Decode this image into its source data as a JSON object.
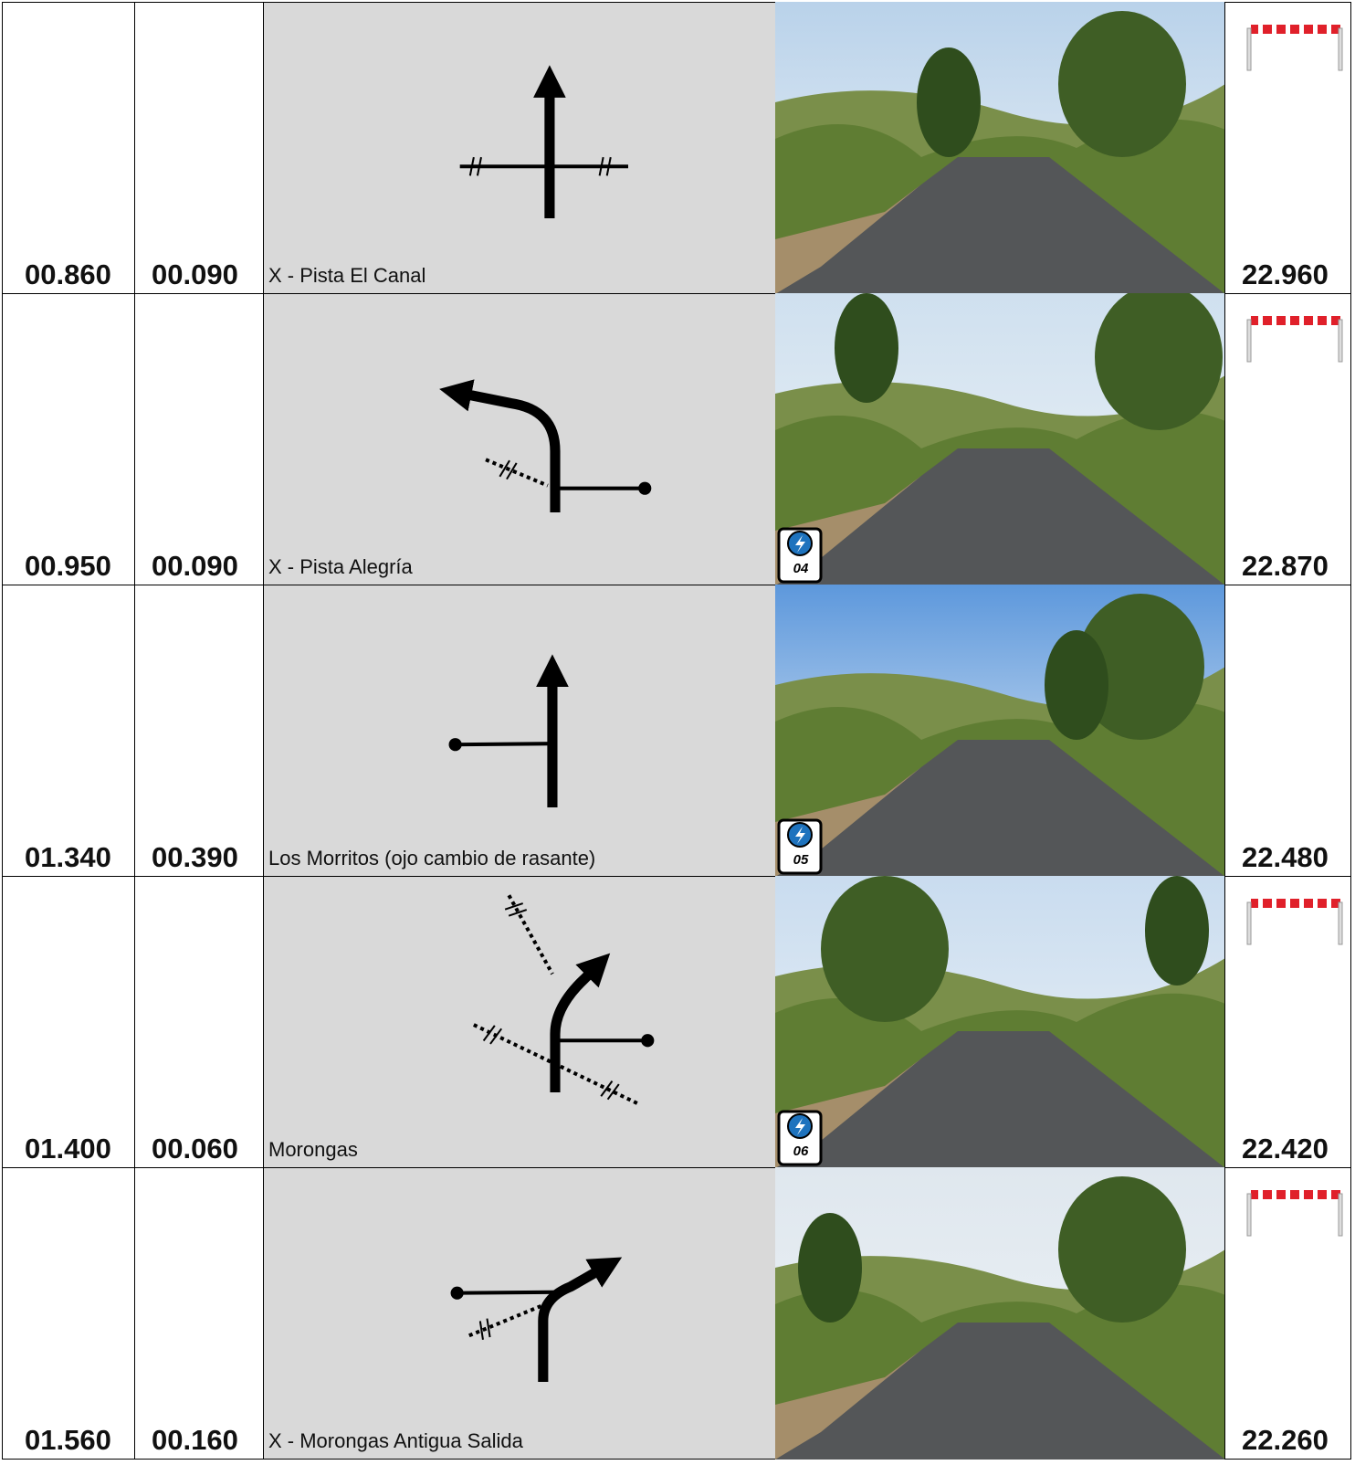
{
  "rows": [
    {
      "total": "00.860",
      "partial": "00.090",
      "description": "X - Pista El Canal",
      "remaining": "22.960",
      "barrier": true
    },
    {
      "total": "00.950",
      "partial": "00.090",
      "description": "X - Pista Alegría",
      "remaining": "22.870",
      "barrier": true,
      "badge": "04"
    },
    {
      "total": "01.340",
      "partial": "00.390",
      "description": "Los Morritos (ojo cambio de rasante)",
      "remaining": "22.480",
      "barrier": false,
      "badge": "05"
    },
    {
      "total": "01.400",
      "partial": "00.060",
      "description": "Morongas",
      "remaining": "22.420",
      "barrier": true,
      "badge": "06"
    },
    {
      "total": "01.560",
      "partial": "00.160",
      "description": "X - Morongas Antigua Salida",
      "remaining": "22.260",
      "barrier": true
    }
  ]
}
